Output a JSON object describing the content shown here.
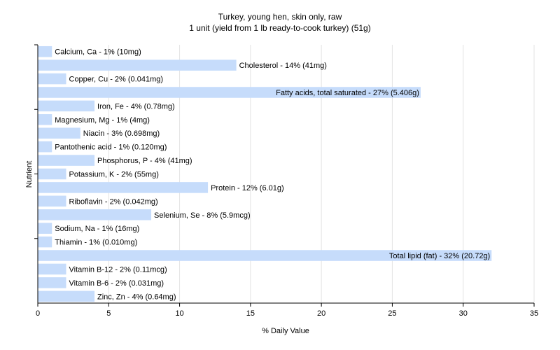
{
  "chart_data": {
    "type": "bar",
    "orientation": "horizontal",
    "title": "Turkey, young hen, skin only, raw",
    "subtitle": "1 unit (yield from 1 lb ready-to-cook turkey) (51g)",
    "xlabel": "% Daily Value",
    "ylabel": "Nutrient",
    "xlim": [
      0,
      35
    ],
    "xticks": [
      "0",
      "5",
      "10",
      "15",
      "20",
      "25",
      "30",
      "35"
    ],
    "grid": true,
    "bar_color": "#c6dcfb",
    "bars": [
      {
        "label": "Calcium, Ca - 1% (10mg)",
        "value": 1
      },
      {
        "label": "Cholesterol - 14% (41mg)",
        "value": 14
      },
      {
        "label": "Copper, Cu - 2% (0.041mg)",
        "value": 2
      },
      {
        "label": "Fatty acids, total saturated - 27% (5.406g)",
        "value": 27
      },
      {
        "label": "Iron, Fe - 4% (0.78mg)",
        "value": 4
      },
      {
        "label": "Magnesium, Mg - 1% (4mg)",
        "value": 1
      },
      {
        "label": "Niacin - 3% (0.698mg)",
        "value": 3
      },
      {
        "label": "Pantothenic acid - 1% (0.120mg)",
        "value": 1
      },
      {
        "label": "Phosphorus, P - 4% (41mg)",
        "value": 4
      },
      {
        "label": "Potassium, K - 2% (55mg)",
        "value": 2
      },
      {
        "label": "Protein - 12% (6.01g)",
        "value": 12
      },
      {
        "label": "Riboflavin - 2% (0.042mg)",
        "value": 2
      },
      {
        "label": "Selenium, Se - 8% (5.9mcg)",
        "value": 8
      },
      {
        "label": "Sodium, Na - 1% (16mg)",
        "value": 1
      },
      {
        "label": "Thiamin - 1% (0.010mg)",
        "value": 1
      },
      {
        "label": "Total lipid (fat) - 32% (20.72g)",
        "value": 32
      },
      {
        "label": "Vitamin B-12 - 2% (0.11mcg)",
        "value": 2
      },
      {
        "label": "Vitamin B-6 - 2% (0.031mg)",
        "value": 2
      },
      {
        "label": "Zinc, Zn - 4% (0.64mg)",
        "value": 4
      }
    ]
  }
}
